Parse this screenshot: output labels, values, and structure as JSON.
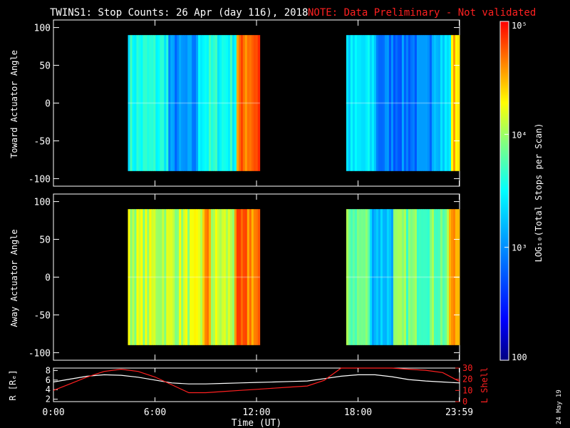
{
  "title": {
    "main": "TWINS1: Stop Counts: 26 Apr (day 116), 2018",
    "note": "NOTE: Data Preliminary - Not validated",
    "note_color": "#ff2020"
  },
  "chart_data": [
    {
      "type": "heatmap",
      "name": "toward",
      "ylabel": "Toward Actuator Angle",
      "ylim": [
        -110,
        110
      ],
      "yticks": [
        -100,
        -50,
        0,
        50,
        100
      ],
      "xlim_hours": [
        0,
        24
      ],
      "data_windows_hours": [
        [
          4.4,
          12.2
        ],
        [
          17.3,
          24.0
        ]
      ],
      "angle_range": [
        -90,
        90
      ]
    },
    {
      "type": "heatmap",
      "name": "away",
      "ylabel": "Away Actuator Angle",
      "ylim": [
        -110,
        110
      ],
      "yticks": [
        -100,
        -50,
        0,
        50,
        100
      ],
      "xlim_hours": [
        0,
        24
      ],
      "data_windows_hours": [
        [
          4.4,
          12.2
        ],
        [
          17.3,
          24.0
        ]
      ],
      "angle_range": [
        -90,
        90
      ]
    },
    {
      "type": "line",
      "name": "ephemeris",
      "ylabel": "R [Rₑ]",
      "ylabel_right": "L Shell",
      "ylim": [
        1.5,
        8.5
      ],
      "yticks": [
        2,
        4,
        6,
        8
      ],
      "ylim_right": [
        0,
        30
      ],
      "yticks_right": [
        0,
        10,
        20,
        30
      ],
      "series": [
        {
          "name": "R",
          "color": "#ffffff",
          "x": [
            0,
            1,
            2,
            3,
            4,
            5,
            6,
            7,
            8,
            9,
            10,
            11,
            12,
            13,
            14,
            15,
            16,
            17,
            18,
            19,
            20,
            21,
            22,
            23,
            24
          ],
          "y": [
            5.6,
            6.2,
            6.8,
            7.1,
            7.0,
            6.6,
            6.0,
            5.4,
            5.2,
            5.2,
            5.3,
            5.4,
            5.5,
            5.6,
            5.7,
            5.8,
            6.3,
            6.8,
            7.1,
            7.1,
            6.7,
            6.1,
            5.8,
            5.6,
            5.4
          ]
        },
        {
          "name": "L",
          "color": "#ff2020",
          "x": [
            0,
            1,
            2,
            3,
            4,
            5,
            6,
            7,
            8,
            9,
            10,
            11,
            12,
            13,
            14,
            15,
            16,
            17,
            18,
            19,
            20,
            21,
            22,
            23,
            24
          ],
          "y": [
            10,
            16,
            22,
            27,
            29,
            27,
            22,
            15,
            8,
            8,
            9,
            10,
            11,
            12,
            13,
            14,
            19,
            31,
            32,
            31,
            30,
            29,
            28,
            26,
            18
          ]
        }
      ]
    }
  ],
  "time_axis": {
    "label": "Time (UT)",
    "ticks": [
      {
        "hour": 0,
        "label": "0:00"
      },
      {
        "hour": 6,
        "label": "6:00"
      },
      {
        "hour": 12,
        "label": "12:00"
      },
      {
        "hour": 18,
        "label": "18:00"
      },
      {
        "hour": 23.98,
        "label": "23:59"
      }
    ]
  },
  "colorbar": {
    "label": "LOG₁₀(Total Stops per Scan)",
    "log_min": 2,
    "log_max": 5,
    "ticks": [
      {
        "value": 100,
        "label": "100"
      },
      {
        "value": 1000,
        "label": "10³"
      },
      {
        "value": 10000,
        "label": "10⁴"
      },
      {
        "value": 100000,
        "label": "10⁵"
      }
    ]
  },
  "date_stamp": "24 May 19"
}
